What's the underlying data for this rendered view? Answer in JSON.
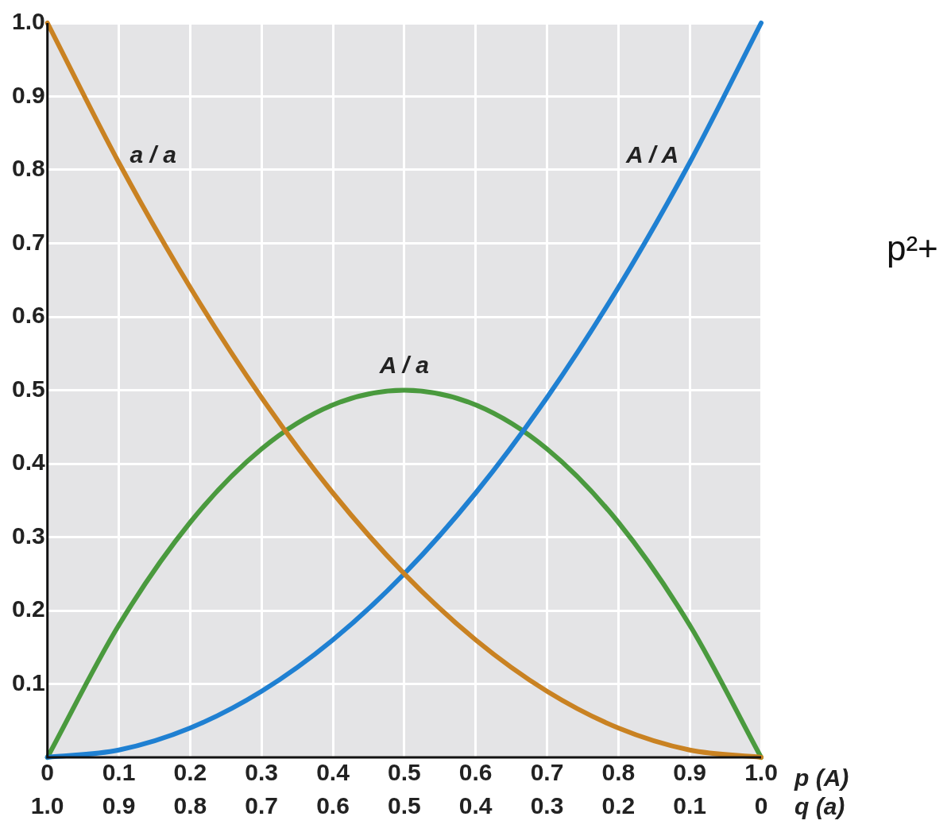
{
  "chart_data": {
    "type": "line",
    "xlabel": "p (A)",
    "x2label": "q (a)",
    "x": [
      0,
      0.1,
      0.2,
      0.3,
      0.4,
      0.5,
      0.6,
      0.7,
      0.8,
      0.9,
      1
    ],
    "series": [
      {
        "name": "a / a",
        "color": "#c98222",
        "values": [
          1,
          0.81,
          0.64,
          0.49,
          0.36,
          0.25,
          0.16,
          0.09,
          0.04,
          0.01,
          0
        ]
      },
      {
        "name": "A / A",
        "color": "#1f80d2",
        "values": [
          0,
          0.01,
          0.04,
          0.09,
          0.16,
          0.25,
          0.36,
          0.49,
          0.64,
          0.81,
          1
        ]
      },
      {
        "name": "A / a",
        "color": "#4a9a3e",
        "values": [
          0,
          0.18,
          0.32,
          0.42,
          0.48,
          0.5,
          0.48,
          0.42,
          0.32,
          0.18,
          0
        ]
      }
    ],
    "xlim": [
      0,
      1
    ],
    "xticks": [
      0,
      0.1,
      0.2,
      0.3,
      0.4,
      0.5,
      0.6,
      0.7,
      0.8,
      0.9,
      {
        "value": 1,
        "label": "1.0"
      }
    ],
    "x2lim": [
      1,
      0
    ],
    "x2ticks": [
      {
        "value": 1,
        "label": "1.0"
      },
      0.9,
      0.8,
      0.7,
      0.6,
      0.5,
      0.4,
      0.3,
      0.2,
      0.1,
      0
    ],
    "ylim": [
      0,
      1
    ],
    "yticks": [
      {
        "value": 0,
        "label": null
      },
      0.1,
      0.2,
      0.3,
      0.4,
      0.5,
      0.6,
      0.7,
      0.8,
      0.9,
      {
        "value": 1,
        "label": "1.0"
      }
    ],
    "grid": true,
    "legend": false,
    "marker": "none",
    "line_style": "solid",
    "annotations": [
      "p²+"
    ]
  }
}
